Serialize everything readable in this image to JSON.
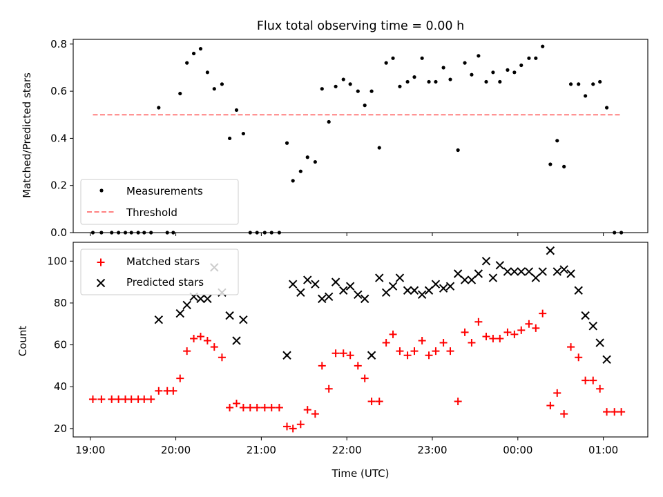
{
  "chart_data": [
    {
      "type": "scatter",
      "title": "Flux total observing time = 0.00 h",
      "xlabel": "",
      "ylabel": "Matched/Predicted stars",
      "ylim": [
        0,
        0.82
      ],
      "xlim": [
        18.8,
        25.52
      ],
      "x_unit": "hours (UTC, 24+ = next day)",
      "yticks": [
        {
          "v": 0,
          "label": "0.0"
        },
        {
          "v": 0.2,
          "label": "0.2"
        },
        {
          "v": 0.4,
          "label": "0.4"
        },
        {
          "v": 0.6,
          "label": "0.6"
        },
        {
          "v": 0.8,
          "label": "0.8"
        }
      ],
      "xticks": [
        19,
        20,
        21,
        22,
        23,
        24,
        25
      ],
      "legend_position": "lower-left",
      "series": [
        {
          "name": "Measurements",
          "marker": "dot",
          "color": "#000000",
          "points": [
            [
              19.03,
              0
            ],
            [
              19.13,
              0
            ],
            [
              19.25,
              0
            ],
            [
              19.33,
              0
            ],
            [
              19.41,
              0
            ],
            [
              19.48,
              0
            ],
            [
              19.56,
              0
            ],
            [
              19.63,
              0
            ],
            [
              19.71,
              0
            ],
            [
              19.8,
              0.53
            ],
            [
              19.9,
              0
            ],
            [
              19.97,
              0
            ],
            [
              20.05,
              0.59
            ],
            [
              20.13,
              0.72
            ],
            [
              20.21,
              0.76
            ],
            [
              20.29,
              0.78
            ],
            [
              20.37,
              0.68
            ],
            [
              20.45,
              0.61
            ],
            [
              20.54,
              0.63
            ],
            [
              20.63,
              0.4
            ],
            [
              20.71,
              0.52
            ],
            [
              20.79,
              0.42
            ],
            [
              20.87,
              0
            ],
            [
              20.95,
              0
            ],
            [
              21.04,
              0
            ],
            [
              21.12,
              0
            ],
            [
              21.21,
              0
            ],
            [
              21.3,
              0.38
            ],
            [
              21.37,
              0.22
            ],
            [
              21.46,
              0.26
            ],
            [
              21.54,
              0.32
            ],
            [
              21.63,
              0.3
            ],
            [
              21.71,
              0.61
            ],
            [
              21.79,
              0.47
            ],
            [
              21.87,
              0.62
            ],
            [
              21.96,
              0.65
            ],
            [
              22.04,
              0.63
            ],
            [
              22.13,
              0.6
            ],
            [
              22.21,
              0.54
            ],
            [
              22.29,
              0.6
            ],
            [
              22.38,
              0.36
            ],
            [
              22.46,
              0.72
            ],
            [
              22.54,
              0.74
            ],
            [
              22.62,
              0.62
            ],
            [
              22.71,
              0.64
            ],
            [
              22.79,
              0.66
            ],
            [
              22.88,
              0.74
            ],
            [
              22.96,
              0.64
            ],
            [
              23.04,
              0.64
            ],
            [
              23.13,
              0.7
            ],
            [
              23.21,
              0.65
            ],
            [
              23.3,
              0.35
            ],
            [
              23.38,
              0.72
            ],
            [
              23.46,
              0.67
            ],
            [
              23.54,
              0.75
            ],
            [
              23.63,
              0.64
            ],
            [
              23.71,
              0.68
            ],
            [
              23.79,
              0.64
            ],
            [
              23.88,
              0.69
            ],
            [
              23.96,
              0.68
            ],
            [
              24.04,
              0.71
            ],
            [
              24.13,
              0.74
            ],
            [
              24.21,
              0.74
            ],
            [
              24.29,
              0.79
            ],
            [
              24.38,
              0.29
            ],
            [
              24.46,
              0.39
            ],
            [
              24.54,
              0.28
            ],
            [
              24.62,
              0.63
            ],
            [
              24.71,
              0.63
            ],
            [
              24.79,
              0.58
            ],
            [
              24.88,
              0.63
            ],
            [
              24.96,
              0.64
            ],
            [
              25.04,
              0.53
            ],
            [
              25.13,
              0
            ],
            [
              25.21,
              0
            ]
          ]
        },
        {
          "name": "Threshold",
          "marker": "dashed-line",
          "color": "#ff8080",
          "x": [
            19.03,
            25.21
          ],
          "y": [
            0.5,
            0.5
          ]
        }
      ]
    },
    {
      "type": "scatter",
      "title": "",
      "xlabel": "Time (UTC)",
      "ylabel": "Count",
      "ylim": [
        16,
        109
      ],
      "xlim": [
        18.8,
        25.52
      ],
      "yticks": [
        {
          "v": 20,
          "label": "20"
        },
        {
          "v": 40,
          "label": "40"
        },
        {
          "v": 60,
          "label": "60"
        },
        {
          "v": 80,
          "label": "80"
        },
        {
          "v": 100,
          "label": "100"
        }
      ],
      "xticks": [
        {
          "v": 19,
          "label": "19:00"
        },
        {
          "v": 20,
          "label": "20:00"
        },
        {
          "v": 21,
          "label": "21:00"
        },
        {
          "v": 22,
          "label": "22:00"
        },
        {
          "v": 23,
          "label": "23:00"
        },
        {
          "v": 24,
          "label": "00:00"
        },
        {
          "v": 25,
          "label": "01:00"
        }
      ],
      "legend_position": "upper-left",
      "series": [
        {
          "name": "Matched stars",
          "marker": "plus",
          "color": "#ff0000",
          "points": [
            [
              19.03,
              34
            ],
            [
              19.13,
              34
            ],
            [
              19.25,
              34
            ],
            [
              19.33,
              34
            ],
            [
              19.41,
              34
            ],
            [
              19.48,
              34
            ],
            [
              19.56,
              34
            ],
            [
              19.63,
              34
            ],
            [
              19.71,
              34
            ],
            [
              19.8,
              38
            ],
            [
              19.9,
              38
            ],
            [
              19.97,
              38
            ],
            [
              20.05,
              44
            ],
            [
              20.13,
              57
            ],
            [
              20.21,
              63
            ],
            [
              20.29,
              64
            ],
            [
              20.37,
              62
            ],
            [
              20.45,
              59
            ],
            [
              20.54,
              54
            ],
            [
              20.63,
              30
            ],
            [
              20.71,
              32
            ],
            [
              20.79,
              30
            ],
            [
              20.87,
              30
            ],
            [
              20.95,
              30
            ],
            [
              21.04,
              30
            ],
            [
              21.12,
              30
            ],
            [
              21.21,
              30
            ],
            [
              21.3,
              21
            ],
            [
              21.37,
              20
            ],
            [
              21.46,
              22
            ],
            [
              21.54,
              29
            ],
            [
              21.63,
              27
            ],
            [
              21.71,
              50
            ],
            [
              21.79,
              39
            ],
            [
              21.87,
              56
            ],
            [
              21.96,
              56
            ],
            [
              22.04,
              55
            ],
            [
              22.13,
              50
            ],
            [
              22.21,
              44
            ],
            [
              22.29,
              33
            ],
            [
              22.38,
              33
            ],
            [
              22.46,
              61
            ],
            [
              22.54,
              65
            ],
            [
              22.62,
              57
            ],
            [
              22.71,
              55
            ],
            [
              22.79,
              57
            ],
            [
              22.88,
              62
            ],
            [
              22.96,
              55
            ],
            [
              23.04,
              57
            ],
            [
              23.13,
              61
            ],
            [
              23.21,
              57
            ],
            [
              23.3,
              33
            ],
            [
              23.38,
              66
            ],
            [
              23.46,
              61
            ],
            [
              23.54,
              71
            ],
            [
              23.63,
              64
            ],
            [
              23.71,
              63
            ],
            [
              23.79,
              63
            ],
            [
              23.88,
              66
            ],
            [
              23.96,
              65
            ],
            [
              24.04,
              67
            ],
            [
              24.13,
              70
            ],
            [
              24.21,
              68
            ],
            [
              24.29,
              75
            ],
            [
              24.38,
              31
            ],
            [
              24.46,
              37
            ],
            [
              24.54,
              27
            ],
            [
              24.62,
              59
            ],
            [
              24.71,
              54
            ],
            [
              24.79,
              43
            ],
            [
              24.88,
              43
            ],
            [
              24.96,
              39
            ],
            [
              25.04,
              28
            ],
            [
              25.13,
              28
            ],
            [
              25.21,
              28
            ]
          ]
        },
        {
          "name": "Predicted stars",
          "marker": "x",
          "color": "#000000",
          "points": [
            [
              19.8,
              72
            ],
            [
              20.05,
              75
            ],
            [
              20.13,
              79
            ],
            [
              20.21,
              83
            ],
            [
              20.29,
              82
            ],
            [
              20.37,
              82
            ],
            [
              20.45,
              97
            ],
            [
              20.54,
              85
            ],
            [
              20.63,
              74
            ],
            [
              20.71,
              62
            ],
            [
              20.79,
              72
            ],
            [
              21.3,
              55
            ],
            [
              21.37,
              89
            ],
            [
              21.46,
              85
            ],
            [
              21.54,
              91
            ],
            [
              21.63,
              89
            ],
            [
              21.71,
              82
            ],
            [
              21.79,
              83
            ],
            [
              21.87,
              90
            ],
            [
              21.96,
              86
            ],
            [
              22.04,
              88
            ],
            [
              22.13,
              84
            ],
            [
              22.21,
              82
            ],
            [
              22.29,
              55
            ],
            [
              22.38,
              92
            ],
            [
              22.46,
              85
            ],
            [
              22.54,
              88
            ],
            [
              22.62,
              92
            ],
            [
              22.71,
              86
            ],
            [
              22.79,
              86
            ],
            [
              22.88,
              84
            ],
            [
              22.96,
              86
            ],
            [
              23.04,
              89
            ],
            [
              23.13,
              87
            ],
            [
              23.21,
              88
            ],
            [
              23.3,
              94
            ],
            [
              23.38,
              91
            ],
            [
              23.46,
              91
            ],
            [
              23.54,
              94
            ],
            [
              23.63,
              100
            ],
            [
              23.71,
              92
            ],
            [
              23.79,
              98
            ],
            [
              23.88,
              95
            ],
            [
              23.96,
              95
            ],
            [
              24.04,
              95
            ],
            [
              24.13,
              95
            ],
            [
              24.21,
              92
            ],
            [
              24.29,
              95
            ],
            [
              24.38,
              105
            ],
            [
              24.46,
              95
            ],
            [
              24.54,
              96
            ],
            [
              24.62,
              94
            ],
            [
              24.71,
              86
            ],
            [
              24.79,
              74
            ],
            [
              24.88,
              69
            ],
            [
              24.96,
              61
            ],
            [
              25.04,
              53
            ]
          ]
        }
      ]
    }
  ]
}
